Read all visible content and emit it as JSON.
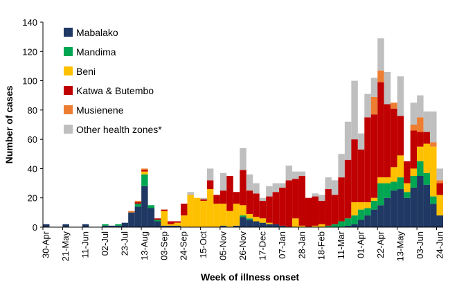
{
  "chart_data": {
    "type": "bar",
    "stacked": true,
    "title": "",
    "xlabel": "Week of illness onset",
    "ylabel": "Number of cases",
    "ylim": [
      0,
      140
    ],
    "yticks": [
      0,
      20,
      40,
      60,
      80,
      100,
      120,
      140
    ],
    "categories": [
      "30-Apr",
      "07-May",
      "14-May",
      "21-May",
      "28-May",
      "04-Jun",
      "11-Jun",
      "18-Jun",
      "25-Jun",
      "02-Jul",
      "09-Jul",
      "16-Jul",
      "23-Jul",
      "30-Jul",
      "06-Aug",
      "13-Aug",
      "20-Aug",
      "27-Aug",
      "03-Sep",
      "10-Sep",
      "17-Sep",
      "24-Sep",
      "01-Oct",
      "08-Oct",
      "15-Oct",
      "22-Oct",
      "29-Oct",
      "05-Nov",
      "12-Nov",
      "19-Nov",
      "26-Nov",
      "03-Dec",
      "10-Dec",
      "17-Dec",
      "24-Dec",
      "31-Dec",
      "07-Jan",
      "14-Jan",
      "21-Jan",
      "28-Jan",
      "04-Feb",
      "11-Feb",
      "18-Feb",
      "25-Feb",
      "04-Mar",
      "11-Mar",
      "18-Mar",
      "25-Mar",
      "01-Apr",
      "08-Apr",
      "15-Apr",
      "22-Apr",
      "29-Apr",
      "06-May",
      "13-May",
      "20-May",
      "27-May",
      "03-Jun",
      "10-Jun",
      "17-Jun",
      "24-Jun"
    ],
    "tick_labels": [
      "30-Apr",
      "21-May",
      "11-Jun",
      "02-Jul",
      "23-Jul",
      "13-Aug",
      "03-Sep",
      "24-Sep",
      "15-Oct",
      "05-Nov",
      "26-Nov",
      "17-Dec",
      "07-Jan",
      "28-Jan",
      "18-Feb",
      "11-Mar",
      "01-Apr",
      "22-Apr",
      "13-May",
      "03-Jun",
      "24-Jun"
    ],
    "legend": [
      "Mabalako",
      "Mandima",
      "Beni",
      "Katwa & Butembo",
      "Musienene",
      "Other health zones*"
    ],
    "legend_position": "top-left",
    "series": [
      {
        "name": "Mabalako",
        "color": "#1f3864",
        "values": [
          2,
          0,
          0,
          2,
          0,
          0,
          2,
          0,
          0,
          1,
          1,
          1,
          3,
          10,
          14,
          28,
          13,
          4,
          1,
          1,
          1,
          0,
          0,
          0,
          0,
          0,
          0,
          1,
          0,
          1,
          7,
          5,
          4,
          3,
          2,
          2,
          1,
          0,
          0,
          0,
          0,
          0,
          0,
          0,
          0,
          0,
          1,
          2,
          5,
          8,
          12,
          15,
          20,
          25,
          26,
          20,
          27,
          35,
          29,
          16,
          8
        ]
      },
      {
        "name": "Mandima",
        "color": "#00a651",
        "values": [
          0,
          0,
          0,
          0,
          0,
          0,
          0,
          0,
          0,
          1,
          0,
          1,
          0,
          0,
          2,
          8,
          2,
          1,
          0,
          0,
          0,
          0,
          0,
          0,
          0,
          0,
          0,
          0,
          0,
          0,
          1,
          1,
          0,
          0,
          0,
          0,
          0,
          0,
          0,
          0,
          0,
          0,
          0,
          1,
          2,
          4,
          5,
          6,
          7,
          5,
          6,
          15,
          10,
          6,
          8,
          4,
          8,
          10,
          8,
          5,
          0
        ]
      },
      {
        "name": "Beni",
        "color": "#ffc000",
        "values": [
          0,
          0,
          0,
          0,
          0,
          0,
          0,
          0,
          0,
          0,
          0,
          0,
          0,
          0,
          0,
          2,
          0,
          0,
          10,
          1,
          2,
          8,
          22,
          20,
          18,
          26,
          16,
          15,
          11,
          15,
          7,
          3,
          3,
          3,
          1,
          0,
          0,
          0,
          6,
          1,
          0,
          1,
          2,
          0,
          0,
          0,
          0,
          9,
          5,
          4,
          2,
          4,
          4,
          10,
          15,
          6,
          5,
          10,
          20,
          34,
          14
        ]
      },
      {
        "name": "Katwa & Butembo",
        "color": "#c00000",
        "values": [
          0,
          0,
          0,
          0,
          0,
          0,
          0,
          0,
          0,
          0,
          0,
          0,
          0,
          0,
          1,
          1,
          0,
          1,
          1,
          2,
          1,
          8,
          0,
          0,
          1,
          6,
          6,
          9,
          24,
          8,
          24,
          16,
          16,
          12,
          18,
          22,
          26,
          32,
          27,
          34,
          20,
          20,
          16,
          25,
          20,
          30,
          40,
          43,
          36,
          58,
          57,
          65,
          50,
          40,
          27,
          15,
          26,
          10,
          8,
          0,
          8
        ]
      },
      {
        "name": "Musienene",
        "color": "#ed7d31",
        "values": [
          0,
          0,
          0,
          0,
          0,
          0,
          0,
          0,
          0,
          0,
          0,
          0,
          0,
          1,
          1,
          1,
          0,
          0,
          0,
          0,
          0,
          0,
          0,
          0,
          0,
          0,
          0,
          0,
          0,
          0,
          0,
          0,
          0,
          0,
          0,
          0,
          0,
          0,
          0,
          0,
          0,
          0,
          0,
          0,
          0,
          0,
          0,
          0,
          0,
          0,
          12,
          8,
          0,
          4,
          0,
          0,
          4,
          10,
          0,
          3,
          2
        ]
      },
      {
        "name": "Other health zones*",
        "color": "#bfbfbf",
        "values": [
          0,
          0,
          0,
          0,
          0,
          0,
          0,
          0,
          0,
          0,
          0,
          0,
          0,
          0,
          0,
          0,
          0,
          0,
          0,
          0,
          0,
          0,
          2,
          0,
          1,
          8,
          0,
          12,
          0,
          0,
          15,
          11,
          7,
          2,
          7,
          6,
          3,
          10,
          5,
          3,
          0,
          2,
          4,
          8,
          10,
          16,
          26,
          40,
          11,
          16,
          13,
          22,
          22,
          0,
          27,
          0,
          15,
          15,
          14,
          21,
          8
        ]
      }
    ]
  }
}
